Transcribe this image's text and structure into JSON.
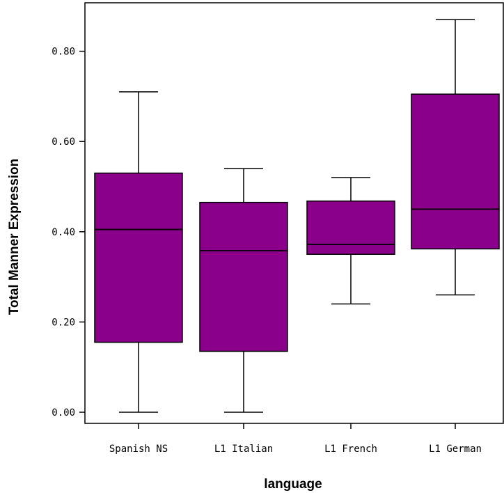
{
  "chart_data": {
    "type": "boxplot",
    "title": "",
    "xlabel": "language",
    "ylabel": "Total Manner Expression",
    "ylim": [
      0.0,
      0.85
    ],
    "yticks": [
      0.0,
      0.2,
      0.4,
      0.6,
      0.8
    ],
    "ytick_labels": [
      "0.00",
      "0.20",
      "0.40",
      "0.60",
      "0.80"
    ],
    "categories": [
      "Spanish NS",
      "L1 Italian",
      "L1 French",
      "L1 German"
    ],
    "boxes": [
      {
        "category": "Spanish NS",
        "min": 0.0,
        "q1": 0.155,
        "median": 0.405,
        "q3": 0.53,
        "max": 0.71
      },
      {
        "category": "L1 Italian",
        "min": 0.0,
        "q1": 0.135,
        "median": 0.358,
        "q3": 0.465,
        "max": 0.54
      },
      {
        "category": "L1 French",
        "min": 0.24,
        "q1": 0.35,
        "median": 0.372,
        "q3": 0.468,
        "max": 0.52
      },
      {
        "category": "L1 German",
        "min": 0.26,
        "q1": 0.362,
        "median": 0.45,
        "q3": 0.705,
        "max": 0.87
      }
    ],
    "box_color": "#8b008b",
    "grid": false,
    "legend": "none"
  }
}
